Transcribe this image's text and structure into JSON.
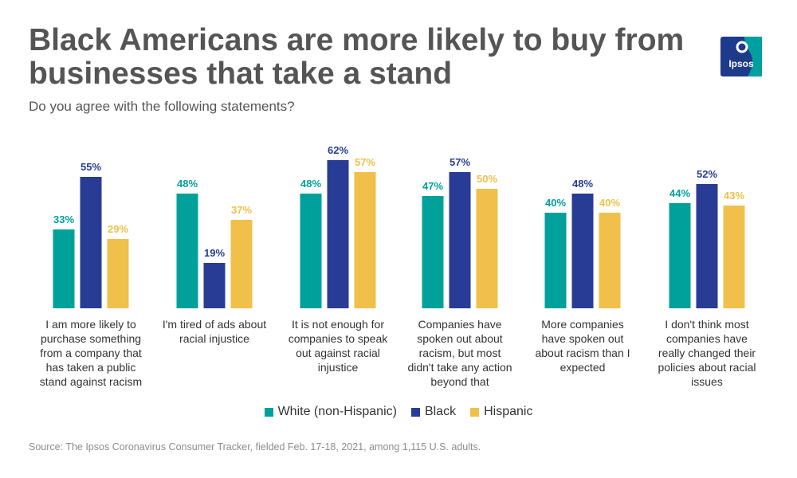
{
  "header": {
    "title": "Black Americans are more likely to buy from businesses that take a stand",
    "subtitle": "Do you agree with the following statements?"
  },
  "logo": {
    "text": "Ipsos",
    "icon": "ipsos-logo-icon",
    "color": "#00a0a0",
    "dark": "#1e3a8a"
  },
  "colors": {
    "white": "#00a19a",
    "black": "#283c96",
    "hispanic": "#f0c04a"
  },
  "chart_data": {
    "type": "bar",
    "categories": [
      "I am more likely to purchase something from a company that has taken a public stand against racism",
      "I'm tired of ads about racial injustice",
      "It is not enough for companies to speak out against racial injustice",
      "Companies have spoken out about racism, but most didn't take any action beyond that",
      "More companies have spoken out about racism than I expected",
      "I don't think most companies have really changed their policies about racial issues"
    ],
    "category_lines": [
      [
        "I am more likely to",
        "purchase something",
        "from a company that",
        "has taken a public",
        "stand against racism"
      ],
      [
        "I'm tired of ads about",
        "racial injustice"
      ],
      [
        "It is not enough for",
        "companies to speak",
        "out against racial",
        "injustice"
      ],
      [
        "Companies have",
        "spoken out about",
        "racism, but most",
        "didn't take any action",
        "beyond that"
      ],
      [
        "More companies",
        "have spoken out",
        "about racism than I",
        "expected"
      ],
      [
        "I don't think most",
        "companies have",
        "really changed their",
        "policies about racial",
        "issues"
      ]
    ],
    "series": [
      {
        "name": "White (non-Hispanic)",
        "values": [
          33,
          48,
          48,
          47,
          40,
          44
        ],
        "labels": [
          "33%",
          "48%",
          "48%",
          "47%",
          "40%",
          "44%"
        ]
      },
      {
        "name": "Black",
        "values": [
          55,
          19,
          62,
          57,
          48,
          52
        ],
        "labels": [
          "55%",
          "19%",
          "62%",
          "57%",
          "48%",
          "52%"
        ]
      },
      {
        "name": "Hispanic",
        "values": [
          29,
          37,
          57,
          50,
          40,
          43
        ],
        "labels": [
          "29%",
          "37%",
          "57%",
          "50%",
          "40%",
          "43%"
        ]
      }
    ],
    "ylim": [
      0,
      62
    ],
    "grid": false,
    "legend": "bottom-center",
    "xlabel": "",
    "ylabel": ""
  },
  "footer": {
    "source": "Source: The Ipsos Coronavirus Consumer Tracker, fielded Feb. 17-18, 2021, among 1,115 U.S. adults."
  }
}
